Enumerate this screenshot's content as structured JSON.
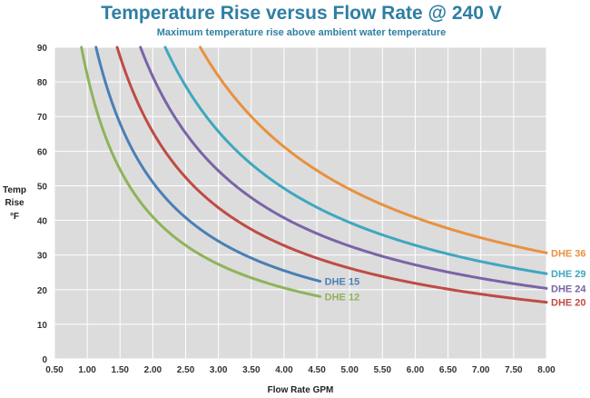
{
  "chart_data": {
    "type": "line",
    "title": "Temperature Rise versus Flow Rate @ 240 V",
    "subtitle": "Maximum temperature rise above ambient water temperature",
    "xlabel": "Flow Rate GPM",
    "ylabel_lines": [
      "Temp",
      "Rise",
      "°F"
    ],
    "xlim": [
      0.5,
      8.0
    ],
    "ylim": [
      0,
      90
    ],
    "grid": true,
    "x_ticks": [
      0.5,
      1.0,
      1.5,
      2.0,
      2.5,
      3.0,
      3.5,
      4.0,
      4.5,
      5.0,
      5.5,
      6.0,
      6.5,
      7.0,
      7.5,
      8.0
    ],
    "x_tick_labels": [
      "0.50",
      "1.00",
      "1.50",
      "2.00",
      "2.50",
      "3.00",
      "3.50",
      "4.00",
      "4.50",
      "5.00",
      "5.50",
      "6.00",
      "6.50",
      "7.00",
      "7.50",
      "8.00"
    ],
    "y_ticks": [
      0,
      10,
      20,
      30,
      40,
      50,
      60,
      70,
      80,
      90
    ],
    "y_tick_labels": [
      "0",
      "10",
      "20",
      "30",
      "40",
      "50",
      "60",
      "70",
      "80",
      "90"
    ],
    "series": [
      {
        "name": "DHE 12",
        "color": "#8fb35a",
        "k": 82,
        "x_end": 4.55
      },
      {
        "name": "DHE 15",
        "color": "#4a7fb5",
        "k": 102,
        "x_end": 4.55
      },
      {
        "name": "DHE 20",
        "color": "#bf4b45",
        "k": 131,
        "x_end": 8.0
      },
      {
        "name": "DHE 24",
        "color": "#7a64a6",
        "k": 163,
        "x_end": 8.0
      },
      {
        "name": "DHE 29",
        "color": "#3fa7bf",
        "k": 197,
        "x_end": 8.0
      },
      {
        "name": "DHE 36",
        "color": "#e8913f",
        "k": 245,
        "x_end": 8.0
      }
    ]
  },
  "colors": {
    "title": "#2e7fa3",
    "plot_background": "#dcdcdc",
    "grid": "#ffffff"
  }
}
